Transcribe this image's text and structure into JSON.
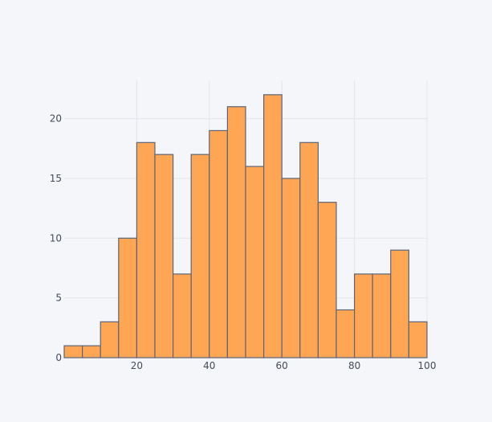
{
  "chart_data": {
    "type": "bar",
    "subtype": "histogram",
    "title": "",
    "xlabel": "",
    "ylabel": "",
    "bin_width": 5,
    "bins": [
      {
        "start": 0,
        "end": 5,
        "count": 1
      },
      {
        "start": 5,
        "end": 10,
        "count": 1
      },
      {
        "start": 10,
        "end": 15,
        "count": 3
      },
      {
        "start": 15,
        "end": 20,
        "count": 10
      },
      {
        "start": 20,
        "end": 25,
        "count": 18
      },
      {
        "start": 25,
        "end": 30,
        "count": 17
      },
      {
        "start": 30,
        "end": 35,
        "count": 7
      },
      {
        "start": 35,
        "end": 40,
        "count": 17
      },
      {
        "start": 40,
        "end": 45,
        "count": 19
      },
      {
        "start": 45,
        "end": 50,
        "count": 21
      },
      {
        "start": 50,
        "end": 55,
        "count": 16
      },
      {
        "start": 55,
        "end": 60,
        "count": 22
      },
      {
        "start": 60,
        "end": 65,
        "count": 15
      },
      {
        "start": 65,
        "end": 70,
        "count": 18
      },
      {
        "start": 70,
        "end": 75,
        "count": 13
      },
      {
        "start": 75,
        "end": 80,
        "count": 4
      },
      {
        "start": 80,
        "end": 85,
        "count": 7
      },
      {
        "start": 85,
        "end": 90,
        "count": 7
      },
      {
        "start": 90,
        "end": 95,
        "count": 9
      },
      {
        "start": 95,
        "end": 100,
        "count": 3
      }
    ],
    "xlim": [
      0,
      100
    ],
    "ylim": [
      0,
      23.2
    ],
    "xticks": [
      20,
      40,
      60,
      80,
      100
    ],
    "yticks": [
      0,
      5,
      10,
      15,
      20
    ],
    "grid": true,
    "legend": "none",
    "colors": {
      "bar_fill": "#ffa655",
      "bar_outline": "#5b6578",
      "grid": "#e3e5ea",
      "background": "#f5f6fa",
      "tick_text": "#444a59"
    }
  }
}
